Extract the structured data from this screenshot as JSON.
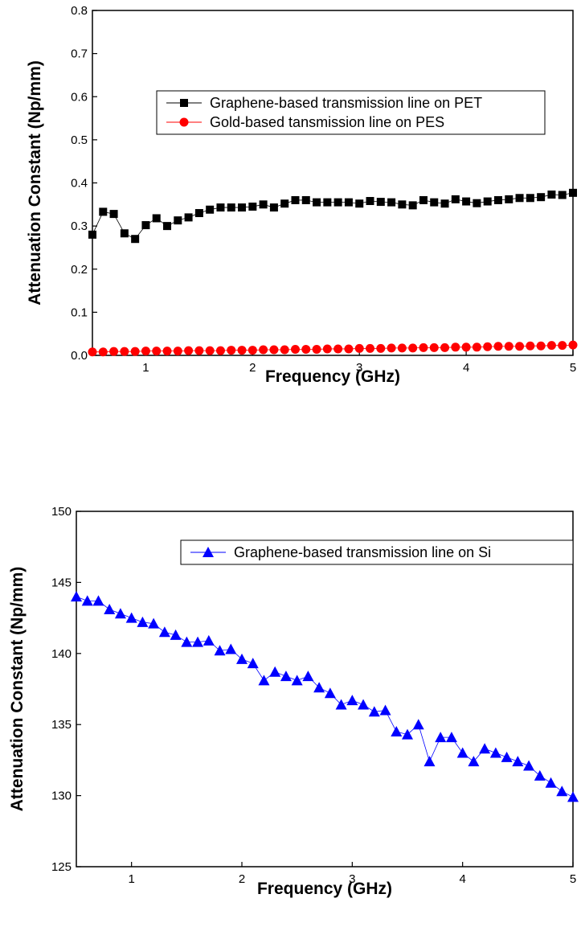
{
  "chart_data": [
    {
      "type": "scatter-line",
      "x_label": "Frequency (GHz)",
      "y_label": "Attenuation Constant (Np/mm)",
      "x": [
        0.5,
        0.6,
        0.7,
        0.8,
        0.9,
        1.0,
        1.1,
        1.2,
        1.3,
        1.4,
        1.5,
        1.6,
        1.7,
        1.8,
        1.9,
        2.0,
        2.1,
        2.2,
        2.3,
        2.4,
        2.5,
        2.6,
        2.7,
        2.8,
        2.9,
        3.0,
        3.1,
        3.2,
        3.3,
        3.4,
        3.5,
        3.6,
        3.7,
        3.8,
        3.9,
        4.0,
        4.1,
        4.2,
        4.3,
        4.4,
        4.5,
        4.6,
        4.7,
        4.8,
        4.9,
        5.0
      ],
      "xlim": [
        0.5,
        5
      ],
      "xticks": [
        1,
        2,
        3,
        4,
        5
      ],
      "ylim": [
        0,
        0.8
      ],
      "yticks": [
        {
          "value": 0,
          "label": "0.0"
        },
        0.1,
        0.2,
        0.3,
        0.4,
        0.5,
        0.6,
        0.7,
        0.8
      ],
      "legend": "upper right",
      "series": [
        {
          "name": "Graphene-based transmission line on PET",
          "color": "#000000",
          "marker": "square",
          "values": [
            0.28,
            0.333,
            0.328,
            0.283,
            0.27,
            0.302,
            0.318,
            0.3,
            0.313,
            0.32,
            0.33,
            0.338,
            0.343,
            0.343,
            0.343,
            0.345,
            0.35,
            0.343,
            0.352,
            0.36,
            0.36,
            0.355,
            0.355,
            0.355,
            0.355,
            0.352,
            0.358,
            0.356,
            0.355,
            0.35,
            0.348,
            0.36,
            0.355,
            0.352,
            0.362,
            0.357,
            0.353,
            0.357,
            0.36,
            0.362,
            0.365,
            0.365,
            0.367,
            0.373,
            0.372,
            0.377
          ]
        },
        {
          "name": "Gold-based tansmission line on PES",
          "color": "#ff0000",
          "marker": "circle",
          "values": [
            0.008,
            0.008,
            0.009,
            0.009,
            0.009,
            0.01,
            0.01,
            0.01,
            0.01,
            0.011,
            0.011,
            0.011,
            0.011,
            0.012,
            0.012,
            0.012,
            0.013,
            0.013,
            0.013,
            0.014,
            0.014,
            0.014,
            0.015,
            0.015,
            0.015,
            0.016,
            0.016,
            0.016,
            0.017,
            0.017,
            0.017,
            0.018,
            0.018,
            0.018,
            0.019,
            0.019,
            0.019,
            0.02,
            0.021,
            0.021,
            0.021,
            0.022,
            0.022,
            0.023,
            0.023,
            0.024
          ]
        }
      ]
    },
    {
      "type": "scatter-line",
      "x_label": "Frequency (GHz)",
      "y_label": "Attenuation Constant (Np/mm)",
      "x": [
        0.5,
        0.6,
        0.7,
        0.8,
        0.9,
        1.0,
        1.1,
        1.2,
        1.3,
        1.4,
        1.5,
        1.6,
        1.7,
        1.8,
        1.9,
        2.0,
        2.1,
        2.2,
        2.3,
        2.4,
        2.5,
        2.6,
        2.7,
        2.8,
        2.9,
        3.0,
        3.1,
        3.2,
        3.3,
        3.4,
        3.5,
        3.6,
        3.7,
        3.8,
        3.9,
        4.0,
        4.1,
        4.2,
        4.3,
        4.4,
        4.5,
        4.6,
        4.7,
        4.8,
        4.9,
        5.0
      ],
      "xlim": [
        0.5,
        5
      ],
      "xticks": [
        1,
        2,
        3,
        4,
        5
      ],
      "ylim": [
        125,
        150
      ],
      "yticks": [
        125,
        130,
        135,
        140,
        145,
        150
      ],
      "legend": "upper right",
      "series": [
        {
          "name": "Graphene-based transmission line on Si",
          "color": "#0000ff",
          "marker": "triangle",
          "values": [
            144,
            143.7,
            143.7,
            143.1,
            142.8,
            142.5,
            142.2,
            142.1,
            141.5,
            141.3,
            140.8,
            140.8,
            140.9,
            140.2,
            140.3,
            139.6,
            139.3,
            138.1,
            138.7,
            138.4,
            138.1,
            138.4,
            137.6,
            137.2,
            136.4,
            136.7,
            136.4,
            135.9,
            136,
            134.5,
            134.3,
            135,
            132.4,
            134.1,
            134.1,
            133,
            132.4,
            133.3,
            133,
            132.7,
            132.4,
            132.1,
            131.4,
            130.9,
            130.3,
            129.9
          ]
        }
      ]
    }
  ]
}
